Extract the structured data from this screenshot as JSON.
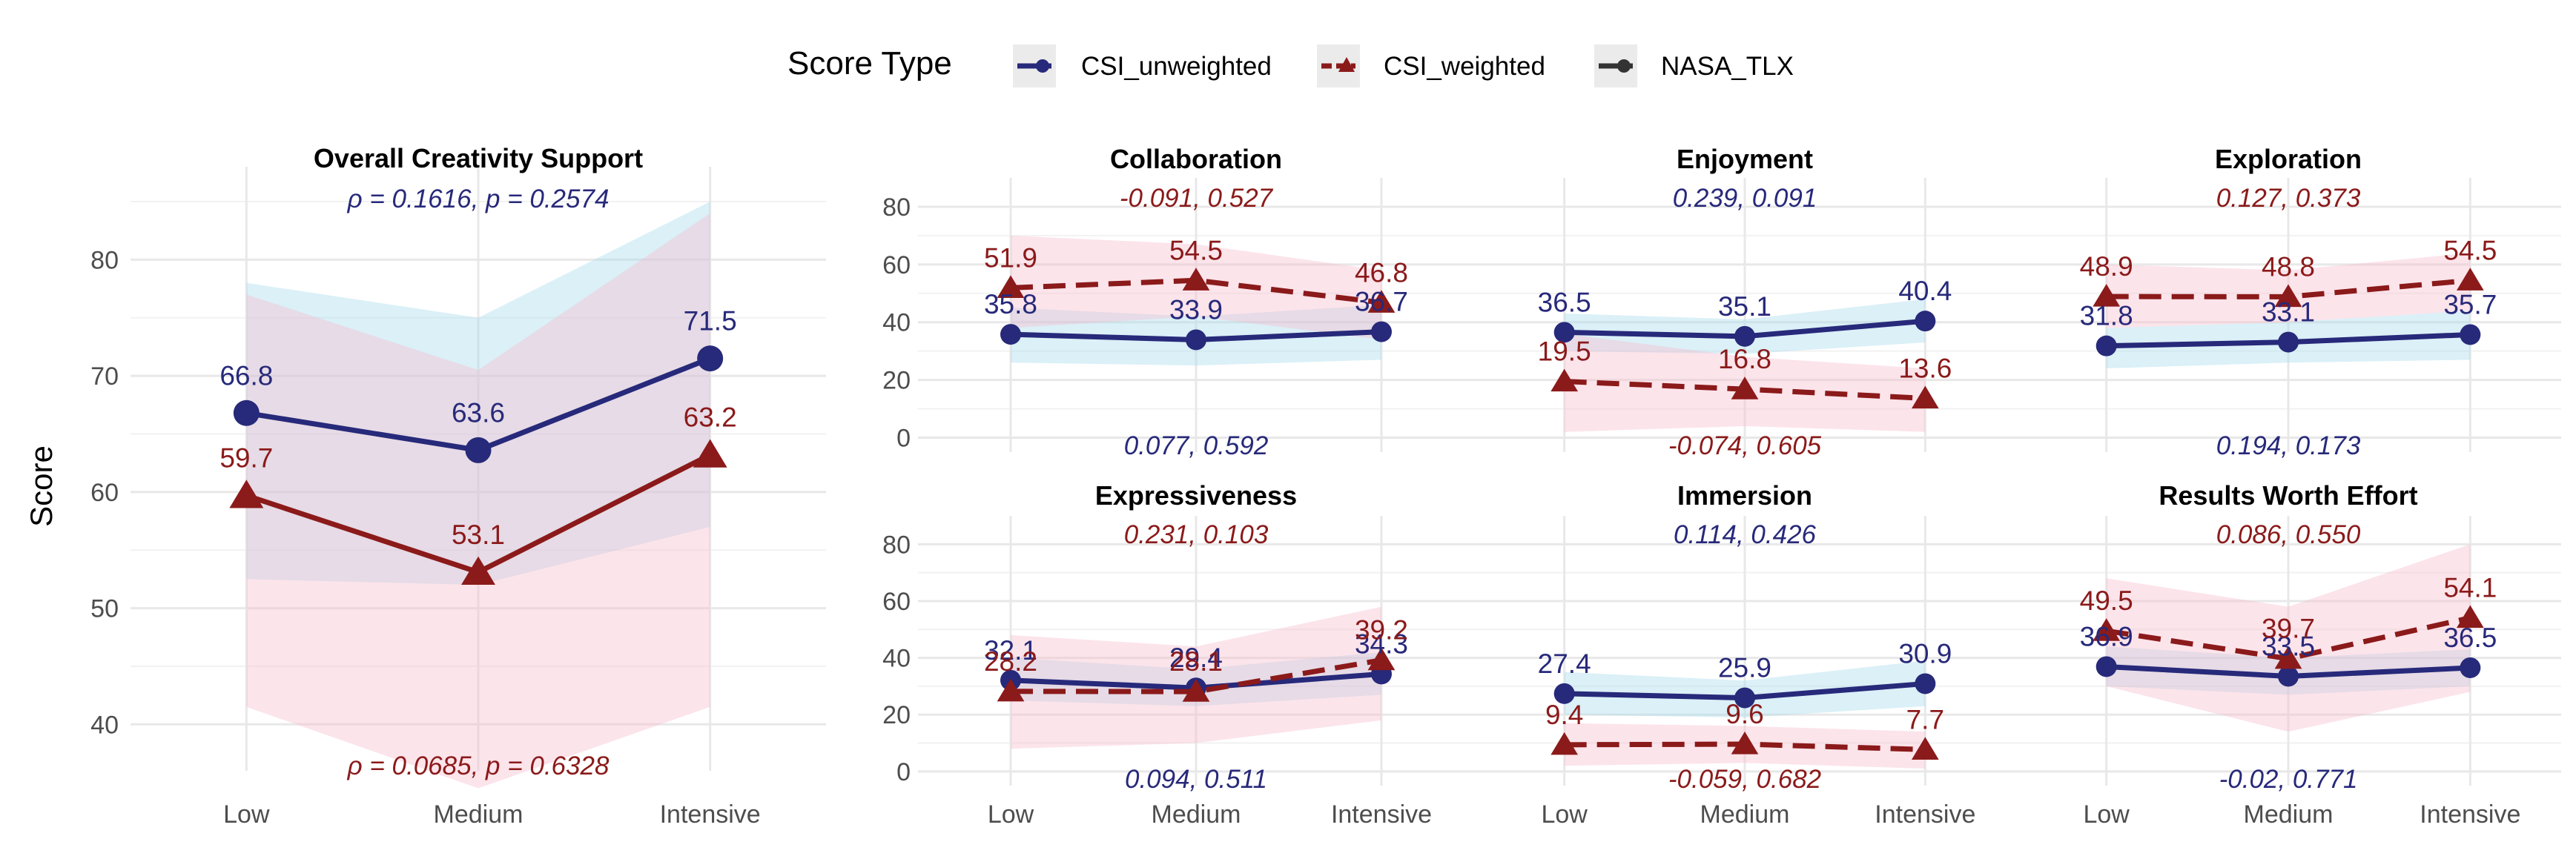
{
  "chart_data": {
    "type": "line",
    "categories": [
      "Low",
      "Medium",
      "Intensive"
    ],
    "ylabel": "Score",
    "legend": {
      "title": "Score Type",
      "position": "top",
      "entries": [
        {
          "name": "CSI_unweighted",
          "color": "#27297a",
          "marker": "circle"
        },
        {
          "name": "CSI_weighted",
          "color": "#8b1a1a",
          "marker": "triangle"
        },
        {
          "name": "NASA_TLX",
          "color": "#333333",
          "marker": "circle"
        }
      ]
    },
    "panels": [
      {
        "title": "Overall Creativity Support",
        "ylim": [
          36,
          88
        ],
        "yticks": [
          40,
          50,
          60,
          70,
          80
        ],
        "dashed": false,
        "series": [
          {
            "name": "CSI_unweighted",
            "values": [
              66.8,
              63.6,
              71.5
            ],
            "labels": [
              "66.8",
              "63.6",
              "71.5"
            ],
            "ribbon_low": [
              52.5,
              52.0,
              57.0
            ],
            "ribbon_high": [
              78.0,
              75.0,
              85.0
            ]
          },
          {
            "name": "CSI_weighted",
            "values": [
              59.7,
              53.1,
              63.2
            ],
            "labels": [
              "59.7",
              "53.1",
              "63.2"
            ],
            "ribbon_low": [
              41.5,
              34.5,
              41.5
            ],
            "ribbon_high": [
              77.0,
              70.5,
              84.0
            ]
          }
        ],
        "stat_top": "ρ = 0.1616, p = 0.2574",
        "stat_bottom": "ρ = 0.0685, p = 0.6328"
      },
      {
        "title": "Collaboration",
        "ylim": [
          -5,
          90
        ],
        "yticks": [
          0,
          20,
          40,
          60,
          80
        ],
        "dashed": true,
        "series": [
          {
            "name": "CSI_unweighted",
            "values": [
              35.8,
              33.9,
              36.7
            ],
            "labels": [
              "35.8",
              "33.9",
              "36.7"
            ],
            "ribbon_low": [
              26,
              25,
              27
            ],
            "ribbon_high": [
              45,
              42,
              46
            ]
          },
          {
            "name": "CSI_weighted",
            "values": [
              51.9,
              54.5,
              46.8
            ],
            "labels": [
              "51.9",
              "54.5",
              "46.8"
            ],
            "ribbon_low": [
              38,
              42,
              34
            ],
            "ribbon_high": [
              70,
              67,
              58
            ]
          }
        ],
        "stat_top": "-0.091, 0.527",
        "stat_bottom": "0.077, 0.592"
      },
      {
        "title": "Enjoyment",
        "ylim": [
          -5,
          90
        ],
        "yticks": [
          0,
          20,
          40,
          60,
          80
        ],
        "dashed": true,
        "series": [
          {
            "name": "CSI_unweighted",
            "values": [
              36.5,
              35.1,
              40.4
            ],
            "labels": [
              "36.5",
              "35.1",
              "40.4"
            ],
            "ribbon_low": [
              30,
              29,
              33
            ],
            "ribbon_high": [
              43,
              41,
              48
            ]
          },
          {
            "name": "CSI_weighted",
            "values": [
              19.5,
              16.8,
              13.6
            ],
            "labels": [
              "19.5",
              "16.8",
              "13.6"
            ],
            "ribbon_low": [
              2,
              4,
              2
            ],
            "ribbon_high": [
              36,
              28,
              24
            ]
          }
        ],
        "stat_top": "0.239, 0.091",
        "stat_bottom": "-0.074, 0.605"
      },
      {
        "title": "Exploration",
        "ylim": [
          -5,
          90
        ],
        "yticks": [
          0,
          20,
          40,
          60,
          80
        ],
        "dashed": true,
        "series": [
          {
            "name": "CSI_unweighted",
            "values": [
              31.8,
              33.1,
              35.7
            ],
            "labels": [
              "31.8",
              "33.1",
              "35.7"
            ],
            "ribbon_low": [
              24,
              26,
              27
            ],
            "ribbon_high": [
              38,
              40,
              44
            ]
          },
          {
            "name": "CSI_weighted",
            "values": [
              48.9,
              48.8,
              54.5
            ],
            "labels": [
              "48.9",
              "48.8",
              "54.5"
            ],
            "ribbon_low": [
              38,
              40,
              44
            ],
            "ribbon_high": [
              60,
              58,
              64
            ]
          }
        ],
        "stat_top": "0.127, 0.373",
        "stat_bottom": "0.194, 0.173"
      },
      {
        "title": "Expressiveness",
        "ylim": [
          -5,
          90
        ],
        "yticks": [
          0,
          20,
          40,
          60,
          80
        ],
        "dashed": true,
        "series": [
          {
            "name": "CSI_unweighted",
            "values": [
              32.1,
              29.4,
              34.3
            ],
            "labels": [
              "32.1",
              "29.4",
              "34.3"
            ],
            "ribbon_low": [
              25,
              23,
              27
            ],
            "ribbon_high": [
              40,
              36,
              42
            ]
          },
          {
            "name": "CSI_weighted",
            "values": [
              28.2,
              28.1,
              39.2
            ],
            "labels": [
              "28.2",
              "28.1",
              "39.2"
            ],
            "ribbon_low": [
              8,
              10,
              18
            ],
            "ribbon_high": [
              48,
              44,
              58
            ]
          }
        ],
        "stat_top": "0.231, 0.103",
        "stat_bottom": "0.094, 0.511"
      },
      {
        "title": "Immersion",
        "ylim": [
          -5,
          90
        ],
        "yticks": [
          0,
          20,
          40,
          60,
          80
        ],
        "dashed": true,
        "series": [
          {
            "name": "CSI_unweighted",
            "values": [
              27.4,
              25.9,
              30.9
            ],
            "labels": [
              "27.4",
              "25.9",
              "30.9"
            ],
            "ribbon_low": [
              20,
              19,
              23
            ],
            "ribbon_high": [
              35,
              32,
              39
            ]
          },
          {
            "name": "CSI_weighted",
            "values": [
              9.4,
              9.6,
              7.7
            ],
            "labels": [
              "9.4",
              "9.6",
              "7.7"
            ],
            "ribbon_low": [
              2,
              3,
              1
            ],
            "ribbon_high": [
              17,
              16,
              14
            ]
          }
        ],
        "stat_top": "0.114, 0.426",
        "stat_bottom": "-0.059, 0.682"
      },
      {
        "title": "Results Worth Effort",
        "ylim": [
          -5,
          90
        ],
        "yticks": [
          0,
          20,
          40,
          60,
          80
        ],
        "dashed": true,
        "series": [
          {
            "name": "CSI_unweighted",
            "values": [
              36.9,
              33.5,
              36.5
            ],
            "labels": [
              "36.9",
              "33.5",
              "36.5"
            ],
            "ribbon_low": [
              30,
              27,
              30
            ],
            "ribbon_high": [
              44,
              40,
              43
            ]
          },
          {
            "name": "CSI_weighted",
            "values": [
              49.5,
              39.7,
              54.1
            ],
            "labels": [
              "49.5",
              "39.7",
              "54.1"
            ],
            "ribbon_low": [
              30,
              14,
              28
            ],
            "ribbon_high": [
              68,
              58,
              80
            ]
          }
        ],
        "stat_top": "0.086, 0.550",
        "stat_bottom": "-0.02, 0.771"
      }
    ]
  }
}
